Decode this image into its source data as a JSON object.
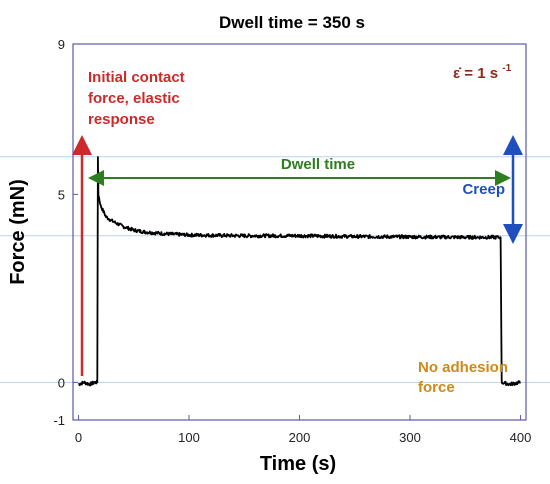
{
  "chart_data": {
    "type": "line",
    "title": "Dwell time = 350 s",
    "xlabel": "Time (s)",
    "ylabel": "Force (mN)",
    "xlim": [
      -5,
      405
    ],
    "ylim": [
      -1,
      9
    ],
    "xticks": [
      {
        "value": 0,
        "label": "0"
      },
      {
        "value": 100,
        "label": "100"
      },
      {
        "value": 200,
        "label": "200"
      },
      {
        "value": 300,
        "label": "300"
      },
      {
        "value": 400,
        "label": "400"
      }
    ],
    "yticks": [
      {
        "value": -1,
        "label": "-1"
      },
      {
        "value": 0,
        "label": "0"
      },
      {
        "value": 5,
        "label": "5"
      },
      {
        "value": 9,
        "label": "9"
      }
    ],
    "grid": false,
    "reference_lines_y": [
      6.0,
      3.9,
      0.0
    ],
    "series": [
      {
        "color": "#000000",
        "x": [
          0,
          5,
          10,
          15,
          17,
          17.5,
          18,
          20,
          25,
          30,
          40,
          50,
          60,
          80,
          100,
          150,
          200,
          250,
          300,
          350,
          380,
          382,
          383,
          390,
          400
        ],
        "y": [
          -0.05,
          0.0,
          -0.05,
          0.0,
          0.0,
          6.0,
          5.0,
          4.7,
          4.4,
          4.3,
          4.15,
          4.05,
          4.0,
          3.95,
          3.92,
          3.9,
          3.9,
          3.88,
          3.87,
          3.86,
          3.86,
          3.86,
          0.0,
          -0.05,
          0.0
        ]
      }
    ],
    "annotations": [
      {
        "lines": [
          "Initial contact",
          "force, elastic",
          "response"
        ],
        "color": "#cc2a2a"
      },
      {
        "text": "Dwell time",
        "color": "#2e7d1f"
      },
      {
        "text": "Creep",
        "color": "#1f4fbf"
      },
      {
        "lines": [
          "No adhesion",
          "force"
        ],
        "color": "#cc8a1a"
      },
      {
        "rate_label": "ε̇ = 1 s",
        "superscript": "-1",
        "color": "#8b2a1a"
      }
    ]
  }
}
